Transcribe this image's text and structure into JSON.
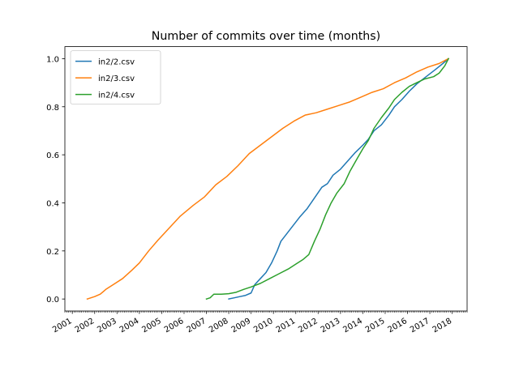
{
  "chart_data": {
    "type": "line",
    "title": "Number of commits over time (months)",
    "xlabel": "",
    "ylabel": "",
    "x_axis_kind": "date",
    "xlim": [
      "2000-09-01",
      "2018-09-01"
    ],
    "ylim": [
      -0.05,
      1.05
    ],
    "x_tick_labels": [
      "2001",
      "2002",
      "2003",
      "2004",
      "2005",
      "2006",
      "2007",
      "2008",
      "2009",
      "2010",
      "2011",
      "2012",
      "2013",
      "2014",
      "2015",
      "2016",
      "2017",
      "2018"
    ],
    "y_tick_labels": [
      "0.0",
      "0.2",
      "0.4",
      "0.6",
      "0.8",
      "1.0"
    ],
    "grid": false,
    "legend_position": "top-left",
    "series": [
      {
        "name": "in2/2.csv",
        "color": "#1f77b4",
        "points": [
          [
            "2008-01-01",
            0.0
          ],
          [
            "2008-04-01",
            0.005
          ],
          [
            "2008-07-01",
            0.01
          ],
          [
            "2008-10-01",
            0.015
          ],
          [
            "2009-01-01",
            0.025
          ],
          [
            "2009-03-01",
            0.06
          ],
          [
            "2009-06-01",
            0.085
          ],
          [
            "2009-09-01",
            0.11
          ],
          [
            "2009-12-01",
            0.15
          ],
          [
            "2010-03-01",
            0.2
          ],
          [
            "2010-05-01",
            0.24
          ],
          [
            "2010-08-01",
            0.27
          ],
          [
            "2010-12-01",
            0.31
          ],
          [
            "2011-03-01",
            0.34
          ],
          [
            "2011-07-01",
            0.375
          ],
          [
            "2011-11-01",
            0.42
          ],
          [
            "2012-03-01",
            0.465
          ],
          [
            "2012-06-01",
            0.48
          ],
          [
            "2012-09-01",
            0.515
          ],
          [
            "2013-01-01",
            0.54
          ],
          [
            "2013-05-01",
            0.575
          ],
          [
            "2013-09-01",
            0.61
          ],
          [
            "2014-01-01",
            0.64
          ],
          [
            "2014-04-01",
            0.665
          ],
          [
            "2014-07-01",
            0.7
          ],
          [
            "2014-11-01",
            0.725
          ],
          [
            "2015-03-01",
            0.765
          ],
          [
            "2015-06-01",
            0.8
          ],
          [
            "2015-10-01",
            0.83
          ],
          [
            "2016-02-01",
            0.865
          ],
          [
            "2016-06-01",
            0.895
          ],
          [
            "2016-11-01",
            0.925
          ],
          [
            "2017-04-01",
            0.955
          ],
          [
            "2017-08-01",
            0.98
          ],
          [
            "2017-11-01",
            1.0
          ]
        ]
      },
      {
        "name": "in2/3.csv",
        "color": "#ff7f0e",
        "points": [
          [
            "2001-09-01",
            0.0
          ],
          [
            "2002-01-01",
            0.01
          ],
          [
            "2002-04-01",
            0.02
          ],
          [
            "2002-07-01",
            0.04
          ],
          [
            "2002-11-01",
            0.06
          ],
          [
            "2003-04-01",
            0.085
          ],
          [
            "2003-09-01",
            0.12
          ],
          [
            "2004-01-01",
            0.15
          ],
          [
            "2004-06-01",
            0.2
          ],
          [
            "2004-11-01",
            0.245
          ],
          [
            "2005-05-01",
            0.295
          ],
          [
            "2005-11-01",
            0.345
          ],
          [
            "2006-06-01",
            0.39
          ],
          [
            "2006-12-01",
            0.425
          ],
          [
            "2007-06-01",
            0.475
          ],
          [
            "2007-12-01",
            0.51
          ],
          [
            "2008-06-01",
            0.555
          ],
          [
            "2008-12-01",
            0.605
          ],
          [
            "2009-06-01",
            0.64
          ],
          [
            "2009-12-01",
            0.675
          ],
          [
            "2010-06-01",
            0.71
          ],
          [
            "2010-12-01",
            0.74
          ],
          [
            "2011-06-01",
            0.765
          ],
          [
            "2011-12-01",
            0.775
          ],
          [
            "2012-06-01",
            0.79
          ],
          [
            "2012-12-01",
            0.805
          ],
          [
            "2013-06-01",
            0.82
          ],
          [
            "2013-12-01",
            0.84
          ],
          [
            "2014-06-01",
            0.86
          ],
          [
            "2014-12-01",
            0.875
          ],
          [
            "2015-06-01",
            0.9
          ],
          [
            "2015-12-01",
            0.92
          ],
          [
            "2016-06-01",
            0.945
          ],
          [
            "2016-12-01",
            0.965
          ],
          [
            "2017-06-01",
            0.98
          ],
          [
            "2017-11-01",
            1.0
          ]
        ]
      },
      {
        "name": "in2/4.csv",
        "color": "#2ca02c",
        "points": [
          [
            "2007-01-01",
            0.0
          ],
          [
            "2007-03-01",
            0.005
          ],
          [
            "2007-05-01",
            0.02
          ],
          [
            "2007-09-01",
            0.02
          ],
          [
            "2008-01-01",
            0.022
          ],
          [
            "2008-05-01",
            0.028
          ],
          [
            "2008-09-01",
            0.04
          ],
          [
            "2009-01-01",
            0.05
          ],
          [
            "2009-06-01",
            0.065
          ],
          [
            "2009-11-01",
            0.085
          ],
          [
            "2010-04-01",
            0.105
          ],
          [
            "2010-09-01",
            0.125
          ],
          [
            "2011-01-01",
            0.145
          ],
          [
            "2011-05-01",
            0.165
          ],
          [
            "2011-08-01",
            0.185
          ],
          [
            "2011-11-01",
            0.24
          ],
          [
            "2012-02-01",
            0.29
          ],
          [
            "2012-05-01",
            0.35
          ],
          [
            "2012-08-01",
            0.4
          ],
          [
            "2012-11-01",
            0.44
          ],
          [
            "2013-03-01",
            0.48
          ],
          [
            "2013-06-01",
            0.53
          ],
          [
            "2013-10-01",
            0.585
          ],
          [
            "2014-01-01",
            0.625
          ],
          [
            "2014-04-01",
            0.66
          ],
          [
            "2014-07-01",
            0.71
          ],
          [
            "2014-11-01",
            0.755
          ],
          [
            "2015-03-01",
            0.795
          ],
          [
            "2015-06-01",
            0.83
          ],
          [
            "2015-10-01",
            0.86
          ],
          [
            "2016-02-01",
            0.885
          ],
          [
            "2016-06-01",
            0.9
          ],
          [
            "2016-10-01",
            0.915
          ],
          [
            "2017-03-01",
            0.925
          ],
          [
            "2017-06-01",
            0.94
          ],
          [
            "2017-09-01",
            0.97
          ],
          [
            "2017-11-01",
            1.0
          ]
        ]
      }
    ]
  }
}
